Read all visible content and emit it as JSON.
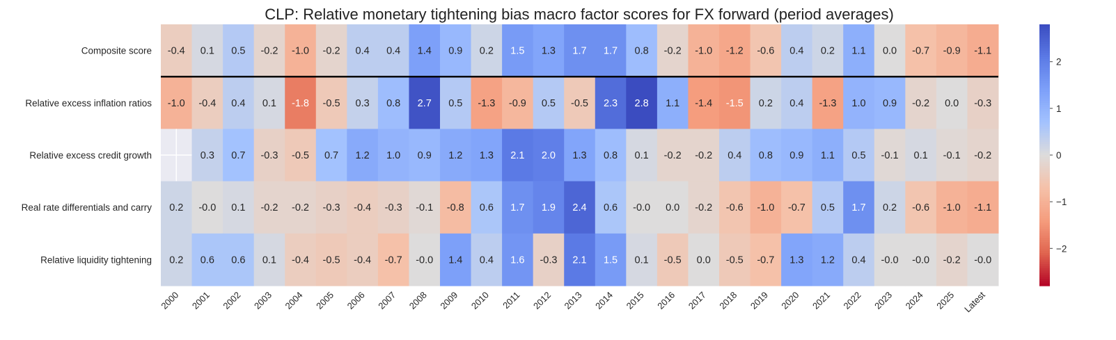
{
  "chart_data": {
    "type": "heatmap",
    "title": "CLP: Relative monetary tightening bias macro factor scores for FX forward (period averages)",
    "columns": [
      "2000",
      "2001",
      "2002",
      "2003",
      "2004",
      "2005",
      "2006",
      "2007",
      "2008",
      "2009",
      "2010",
      "2011",
      "2012",
      "2013",
      "2014",
      "2015",
      "2016",
      "2017",
      "2018",
      "2019",
      "2020",
      "2021",
      "2022",
      "2023",
      "2024",
      "2025",
      "Latest"
    ],
    "rows": [
      {
        "label": "Composite score",
        "values": [
          -0.4,
          0.1,
          0.5,
          -0.2,
          -1.0,
          -0.2,
          0.4,
          0.4,
          1.4,
          0.9,
          0.2,
          1.5,
          1.3,
          1.7,
          1.7,
          0.8,
          -0.2,
          -1.0,
          -1.2,
          -0.6,
          0.4,
          0.2,
          1.1,
          0.0,
          -0.7,
          -0.9,
          -1.1
        ]
      },
      {
        "label": "Relative excess inflation ratios",
        "values": [
          -1.0,
          -0.4,
          0.4,
          0.1,
          -1.8,
          -0.5,
          0.3,
          0.8,
          2.7,
          0.5,
          -1.3,
          -0.9,
          0.5,
          -0.5,
          2.3,
          2.8,
          1.1,
          -1.4,
          -1.5,
          0.2,
          0.4,
          -1.3,
          1.0,
          0.9,
          -0.2,
          0.0,
          -0.3
        ]
      },
      {
        "label": "Relative excess credit growth",
        "values": [
          null,
          0.3,
          0.7,
          -0.3,
          -0.5,
          0.7,
          1.2,
          1.0,
          0.9,
          1.2,
          1.3,
          2.1,
          2.0,
          1.3,
          0.8,
          0.1,
          -0.2,
          -0.2,
          0.4,
          0.8,
          0.9,
          1.1,
          0.5,
          -0.1,
          0.1,
          -0.1,
          -0.2
        ]
      },
      {
        "label": "Real rate differentials and carry",
        "values": [
          0.2,
          -0.0,
          0.1,
          -0.2,
          -0.2,
          -0.3,
          -0.4,
          -0.3,
          -0.1,
          -0.8,
          0.6,
          1.7,
          1.9,
          2.4,
          0.6,
          -0.0,
          0.0,
          -0.2,
          -0.6,
          -1.0,
          -0.7,
          0.5,
          1.7,
          0.2,
          -0.6,
          -1.0,
          -1.1
        ]
      },
      {
        "label": "Relative liquidity tightening",
        "values": [
          0.2,
          0.6,
          0.6,
          0.1,
          -0.4,
          -0.5,
          -0.4,
          -0.7,
          -0.0,
          1.4,
          0.4,
          1.6,
          -0.3,
          2.1,
          1.5,
          0.1,
          -0.5,
          0.0,
          -0.5,
          -0.7,
          1.3,
          1.2,
          0.4,
          -0.0,
          -0.0,
          -0.2,
          -0.0
        ]
      }
    ],
    "colormap": "coolwarm_r",
    "vmin": -2.8,
    "vmax": 2.8,
    "colorbar_ticks": [
      2,
      1,
      0,
      -1,
      -2
    ],
    "colorbar_tick_labels": [
      "2",
      "1",
      "0",
      "−1",
      "−2"
    ],
    "missing_color": "#eaeaf2",
    "separator_after_row": 0
  }
}
